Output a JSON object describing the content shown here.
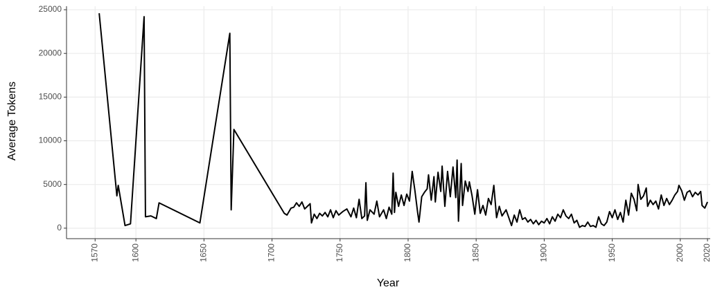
{
  "chart_data": {
    "type": "line",
    "x_label": "Year",
    "y_label": "Average Tokens",
    "color": "#000000",
    "grid": true,
    "xlim": [
      1549,
      2022
    ],
    "ylim": [
      -1200,
      25400
    ],
    "xticks": [
      1570,
      1600,
      1650,
      1700,
      1750,
      1800,
      1850,
      1900,
      1950,
      2000,
      2020
    ],
    "yticks": [
      0,
      5000,
      10000,
      15000,
      20000,
      25000
    ],
    "x": [
      1573,
      1586,
      1587,
      1592,
      1596,
      1606,
      1607,
      1611,
      1615,
      1617,
      1647,
      1669,
      1670,
      1672,
      1709,
      1711,
      1714,
      1716,
      1718,
      1720,
      1722,
      1724,
      1726,
      1728,
      1729,
      1731,
      1733,
      1735,
      1737,
      1739,
      1741,
      1743,
      1745,
      1747,
      1749,
      1752,
      1755,
      1758,
      1760,
      1762,
      1764,
      1766,
      1768,
      1769,
      1770,
      1772,
      1775,
      1777,
      1779,
      1782,
      1784,
      1786,
      1788,
      1789,
      1790,
      1791,
      1793,
      1795,
      1797,
      1799,
      1801,
      1803,
      1805,
      1807,
      1808,
      1810,
      1812,
      1814,
      1815,
      1817,
      1819,
      1820,
      1822,
      1824,
      1825,
      1827,
      1829,
      1831,
      1833,
      1835,
      1836,
      1837,
      1839,
      1840,
      1842,
      1844,
      1845,
      1847,
      1849,
      1851,
      1853,
      1855,
      1857,
      1859,
      1861,
      1863,
      1865,
      1867,
      1869,
      1872,
      1874,
      1876,
      1878,
      1880,
      1882,
      1884,
      1886,
      1888,
      1890,
      1892,
      1894,
      1896,
      1898,
      1900,
      1902,
      1904,
      1906,
      1908,
      1910,
      1912,
      1914,
      1916,
      1918,
      1920,
      1922,
      1924,
      1926,
      1928,
      1930,
      1932,
      1934,
      1936,
      1938,
      1940,
      1942,
      1944,
      1946,
      1948,
      1950,
      1952,
      1954,
      1956,
      1958,
      1960,
      1962,
      1964,
      1966,
      1968,
      1969,
      1971,
      1973,
      1975,
      1976,
      1978,
      1980,
      1982,
      1984,
      1986,
      1988,
      1990,
      1992,
      1994,
      1996,
      1998,
      1999,
      2001,
      2003,
      2005,
      2007,
      2009,
      2011,
      2013,
      2015,
      2016,
      2018,
      2020
    ],
    "values": [
      24600,
      3700,
      4900,
      300,
      500,
      24200,
      1300,
      1400,
      1100,
      2900,
      600,
      22300,
      2100,
      11300,
      1700,
      1500,
      2300,
      2400,
      2900,
      2500,
      3000,
      2200,
      2500,
      2800,
      600,
      1600,
      1100,
      1700,
      1400,
      1800,
      1300,
      2100,
      1200,
      2000,
      1500,
      1900,
      2200,
      1300,
      2300,
      1200,
      3300,
      1100,
      1400,
      5200,
      900,
      2100,
      1600,
      3100,
      1300,
      2100,
      1100,
      2400,
      1600,
      6300,
      1800,
      4100,
      2500,
      3800,
      2600,
      3900,
      3100,
      6500,
      4300,
      1800,
      700,
      3600,
      4100,
      4500,
      6100,
      3200,
      5900,
      3000,
      6400,
      4200,
      7100,
      2500,
      6500,
      3600,
      7000,
      3500,
      7800,
      800,
      7400,
      2600,
      5400,
      4200,
      5300,
      3700,
      1600,
      4400,
      1700,
      2600,
      1500,
      3400,
      2700,
      4900,
      1200,
      2500,
      1400,
      2100,
      1200,
      300,
      1500,
      700,
      2100,
      1000,
      1200,
      700,
      1000,
      500,
      900,
      400,
      800,
      600,
      1100,
      500,
      1300,
      800,
      1600,
      1200,
      2100,
      1400,
      1100,
      1600,
      600,
      900,
      100,
      300,
      200,
      700,
      200,
      300,
      100,
      1300,
      500,
      300,
      700,
      1900,
      1200,
      2100,
      1000,
      1800,
      700,
      3200,
      1500,
      4000,
      3300,
      2000,
      5000,
      3300,
      3700,
      4600,
      2500,
      3200,
      2700,
      3100,
      2200,
      3800,
      2600,
      3400,
      2700,
      3200,
      3800,
      4200,
      4900,
      4300,
      3200,
      4100,
      4300,
      3600,
      4100,
      3800,
      4200,
      2600,
      2300,
      3000
    ]
  }
}
